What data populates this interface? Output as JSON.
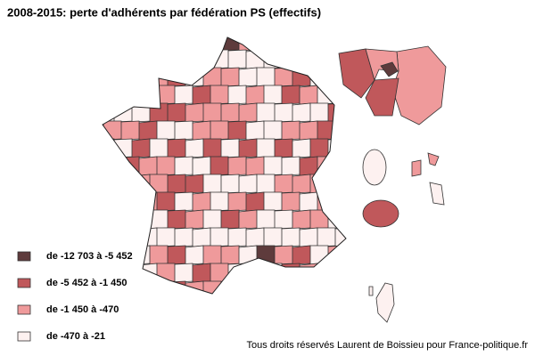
{
  "title": "2008-2015: perte d'adhérents par fédération PS (effectifs)",
  "legend": [
    {
      "label": "de -12 703 à -5 452",
      "color": "#5e3b3c"
    },
    {
      "label": "de -5 452 à -1 450",
      "color": "#c0585b"
    },
    {
      "label": "de -1 450 à -470",
      "color": "#ef9a9b"
    },
    {
      "label": "de -470 à -21",
      "color": "#fdf1f0"
    }
  ],
  "credit": "Tous droits réservés Laurent de Boissieu pour France-politique.fr"
}
